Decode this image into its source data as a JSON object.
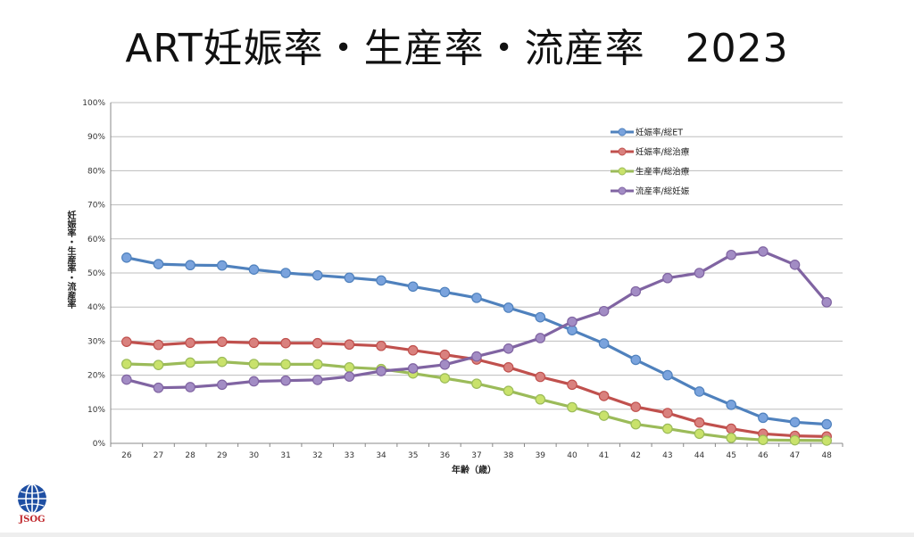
{
  "title": "ART妊娠率・生産率・流産率　2023",
  "logo": {
    "text": "JSOG",
    "color": "#1f4fa3",
    "text_color": "#c0282d"
  },
  "chart_data": {
    "type": "line",
    "title": "ART妊娠率・生産率・流産率　2023",
    "xlabel": "年齢（歳）",
    "ylabel": "妊娠率・生産率・流産率",
    "ylim": [
      0,
      100
    ],
    "y_ticks": [
      "0%",
      "10%",
      "20%",
      "30%",
      "40%",
      "50%",
      "60%",
      "70%",
      "80%",
      "90%",
      "100%"
    ],
    "grid": true,
    "legend_position": "top-right",
    "x": [
      26,
      27,
      28,
      29,
      30,
      31,
      32,
      33,
      34,
      35,
      36,
      37,
      38,
      39,
      40,
      41,
      42,
      43,
      44,
      45,
      46,
      47,
      48
    ],
    "series": [
      {
        "name": "妊娠率/総ET",
        "color": "#4f81bd",
        "marker": "#7aa3dd",
        "values": [
          54.5,
          52.6,
          52.3,
          52.2,
          51.0,
          50.0,
          49.3,
          48.6,
          47.8,
          46.0,
          44.4,
          42.7,
          39.8,
          37.0,
          33.2,
          29.3,
          24.5,
          20.0,
          15.2,
          11.3,
          7.5,
          6.2,
          5.6
        ]
      },
      {
        "name": "妊娠率/総治療",
        "color": "#c0504d",
        "marker": "#d9817e",
        "values": [
          29.8,
          28.9,
          29.5,
          29.8,
          29.5,
          29.4,
          29.4,
          29.0,
          28.6,
          27.3,
          26.0,
          24.6,
          22.3,
          19.5,
          17.2,
          13.9,
          10.7,
          8.9,
          6.1,
          4.3,
          2.8,
          2.2,
          2.0
        ]
      },
      {
        "name": "生産率/総治療",
        "color": "#9bbb59",
        "marker": "#c9e26b",
        "values": [
          23.3,
          23.0,
          23.7,
          23.9,
          23.3,
          23.2,
          23.2,
          22.3,
          21.8,
          20.5,
          19.1,
          17.5,
          15.4,
          12.9,
          10.6,
          8.1,
          5.6,
          4.3,
          2.8,
          1.6,
          1.0,
          0.9,
          0.8
        ]
      },
      {
        "name": "流産率/総妊娠",
        "color": "#8064a2",
        "marker": "#a28cc4",
        "values": [
          18.7,
          16.3,
          16.5,
          17.2,
          18.2,
          18.4,
          18.6,
          19.6,
          21.2,
          22.0,
          23.1,
          25.5,
          27.8,
          30.9,
          35.7,
          38.8,
          44.6,
          48.5,
          50.0,
          55.3,
          56.3,
          52.4,
          41.4
        ]
      }
    ]
  }
}
